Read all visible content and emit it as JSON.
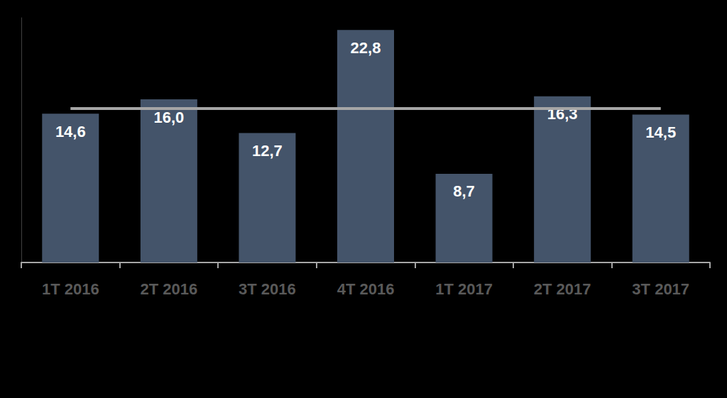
{
  "chart_data": {
    "type": "bar",
    "categories": [
      "1T 2016",
      "2T 2016",
      "3T 2016",
      "4T 2016",
      "1T 2017",
      "2T 2017",
      "3T 2017"
    ],
    "series": [
      {
        "type": "bar",
        "color": "#44546a",
        "values": [
          14.6,
          16.0,
          12.7,
          22.8,
          8.7,
          16.3,
          14.5
        ],
        "value_labels": [
          "14,6",
          "16,0",
          "12,7",
          "22,8",
          "8,7",
          "16,3",
          "14,5"
        ]
      },
      {
        "type": "line",
        "color": "#a6a6a6",
        "values": [
          15.1,
          15.1,
          15.1,
          15.1,
          15.1,
          15.1,
          15.1
        ]
      }
    ],
    "ylim": [
      0,
      24
    ],
    "data_labels": true,
    "tick_labels": "x",
    "grid": false
  }
}
